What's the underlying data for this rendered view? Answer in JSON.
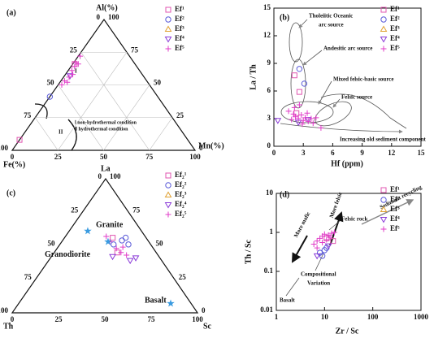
{
  "chart_data": [
    {
      "type": "ternary",
      "label": "(a)",
      "axes": [
        "Al(%)",
        "Fe(%)",
        "Mn(%)"
      ],
      "ticks": [
        0,
        25,
        50,
        75,
        100
      ],
      "grid": true,
      "series": [
        {
          "name": "Ef¹",
          "marker": "square",
          "color": "#e055b0",
          "values": [
            [
              66,
              33,
              1
            ],
            [
              8,
              92,
              0
            ]
          ]
        },
        {
          "name": "Ef²",
          "marker": "circle",
          "color": "#5a5ad8",
          "values": [
            [
              41,
              59,
              0
            ]
          ]
        },
        {
          "name": "Ef³",
          "marker": "triangle",
          "color": "#e0a030",
          "values": []
        },
        {
          "name": "Ef⁴",
          "marker": "triangle-down",
          "color": "#8a3ad8",
          "values": [
            [
              57,
              40,
              3
            ]
          ]
        },
        {
          "name": "Ef⁵",
          "marker": "plus",
          "color": "#e03cc8",
          "values": [
            [
              72,
              27,
              1
            ],
            [
              67,
              32,
              1
            ],
            [
              64,
              34,
              2
            ],
            [
              61,
              37,
              2
            ],
            [
              58,
              38,
              4
            ],
            [
              56,
              41,
              3
            ],
            [
              53,
              45,
              2
            ],
            [
              52,
              44,
              4
            ],
            [
              50,
              48,
              2
            ],
            [
              66,
              31,
              3
            ]
          ]
        }
      ],
      "annotations": [
        "I",
        "II",
        "Ⅰ non-hydrothermal condition",
        "Ⅱ hydrothermal condition"
      ]
    },
    {
      "type": "scatter",
      "label": "(b)",
      "xlabel": "Hf (ppm)",
      "ylabel": "La / Th",
      "xlim": [
        0,
        15
      ],
      "ylim": [
        0,
        15
      ],
      "xticks": [
        0,
        3,
        6,
        9,
        12,
        15
      ],
      "yticks": [
        0,
        3,
        6,
        9,
        12,
        15
      ],
      "series": [
        {
          "name": "Ef¹",
          "marker": "square",
          "color": "#e055b0",
          "x": [
            2.1,
            2.6,
            2.3
          ],
          "values": [
            7.7,
            5.9,
            3.6
          ]
        },
        {
          "name": "Ef²",
          "marker": "circle",
          "color": "#5a5ad8",
          "x": [
            2.6,
            3.1
          ],
          "values": [
            8.4,
            6.8
          ]
        },
        {
          "name": "Ef³",
          "marker": "triangle",
          "color": "#e0a030",
          "x": [],
          "values": []
        },
        {
          "name": "Ef⁴",
          "marker": "triangle-down",
          "color": "#8a3ad8",
          "x": [
            0.4,
            2.5,
            3.5
          ],
          "values": [
            2.8,
            2.6,
            2.9
          ]
        },
        {
          "name": "Ef⁵",
          "marker": "plus",
          "color": "#e03cc8",
          "x": [
            1.5,
            2.0,
            2.2,
            2.5,
            2.8,
            3.0,
            3.2,
            3.5,
            3.8,
            4.0,
            4.3,
            2.1,
            2.6,
            3.4,
            4.8,
            1.8,
            2.9
          ],
          "values": [
            3.8,
            3.5,
            3.2,
            3.0,
            3.4,
            2.8,
            3.1,
            2.7,
            3.0,
            2.5,
            3.1,
            4.2,
            4.5,
            3.6,
            2.0,
            2.9,
            2.4
          ]
        }
      ],
      "annotations": [
        "Tholeiitic Oceanic",
        "arc source",
        "Andesitic arc source",
        "Mixed felsic-basic source",
        "Felsic source",
        "Increasing old sediment component"
      ]
    },
    {
      "type": "ternary",
      "label": "(c)",
      "axes": [
        "La",
        "Th",
        "Sc"
      ],
      "ticks": [
        0,
        25,
        50,
        75,
        100
      ],
      "grid": false,
      "series": [
        {
          "name": "Ef₂¹",
          "marker": "square",
          "color": "#e055b0",
          "values": [
            [
              56,
              18,
              26
            ],
            [
              45,
              21,
              34
            ]
          ]
        },
        {
          "name": "Ef₂²",
          "marker": "circle",
          "color": "#5a5ad8",
          "values": [
            [
              54,
              14,
              32
            ],
            [
              56,
              11,
              33
            ],
            [
              51,
              12,
              37
            ],
            [
              51,
              20,
              29
            ]
          ]
        },
        {
          "name": "Ef₂³",
          "marker": "triangle",
          "color": "#e0a030",
          "values": []
        },
        {
          "name": "Ef₂⁴",
          "marker": "triangle-down",
          "color": "#8a3ad8",
          "values": [
            [
              42,
              25,
              33
            ],
            [
              39,
              17,
              44
            ],
            [
              41,
              13,
              46
            ]
          ]
        },
        {
          "name": "Ef₂⁵",
          "marker": "plus",
          "color": "#e03cc8",
          "values": [
            [
              53,
              21,
              26
            ],
            [
              48,
              20,
              32
            ],
            [
              45,
              19,
              36
            ],
            [
              49,
              16,
              35
            ],
            [
              57,
              21,
              22
            ],
            [
              43,
              17,
              40
            ]
          ]
        }
      ],
      "references": [
        {
          "name": "Granite",
          "color": "#3a9be0",
          "value": [
            61,
            29,
            10
          ]
        },
        {
          "name": "Granodiorite",
          "color": "#3a9be0",
          "value": [
            53,
            22,
            25
          ]
        },
        {
          "name": "Basalt",
          "color": "#3a9be0",
          "value": [
            7,
            11,
            82
          ]
        }
      ]
    },
    {
      "type": "scatter",
      "label": "(d)",
      "xlabel": "Zr / Sc",
      "ylabel": "Th / Sc",
      "xscale": "log",
      "yscale": "log",
      "xlim": [
        1,
        1000
      ],
      "ylim": [
        0.01,
        10
      ],
      "xticks": [
        1,
        10,
        100,
        1000
      ],
      "yticks": [
        0.01,
        0.1,
        1,
        10
      ],
      "series": [
        {
          "name": "Ef¹",
          "marker": "square",
          "color": "#e055b0",
          "x": [
            11,
            15
          ],
          "values": [
            0.7,
            0.6
          ]
        },
        {
          "name": "Ef²",
          "marker": "circle",
          "color": "#5a5ad8",
          "x": [
            8,
            9,
            10,
            11
          ],
          "values": [
            0.3,
            0.25,
            0.35,
            0.4
          ]
        },
        {
          "name": "Ef³",
          "marker": "triangle",
          "color": "#e0a030",
          "x": [],
          "values": []
        },
        {
          "name": "Ef⁴",
          "marker": "triangle-down",
          "color": "#8a3ad8",
          "x": [
            7,
            12
          ],
          "values": [
            0.25,
            0.45
          ]
        },
        {
          "name": "Ef⁵",
          "marker": "plus",
          "color": "#e03cc8",
          "x": [
            6,
            7,
            8,
            9,
            10,
            12,
            14,
            9,
            11,
            13,
            16,
            7
          ],
          "values": [
            0.5,
            0.6,
            0.7,
            0.8,
            0.9,
            0.85,
            0.95,
            0.55,
            0.65,
            0.75,
            1.0,
            0.4
          ]
        }
      ],
      "annotations": [
        "More felsic",
        "More mafic",
        "Felsic rock",
        "Sediment recycling",
        "Compositional",
        "Variation",
        "Basalt"
      ]
    }
  ]
}
